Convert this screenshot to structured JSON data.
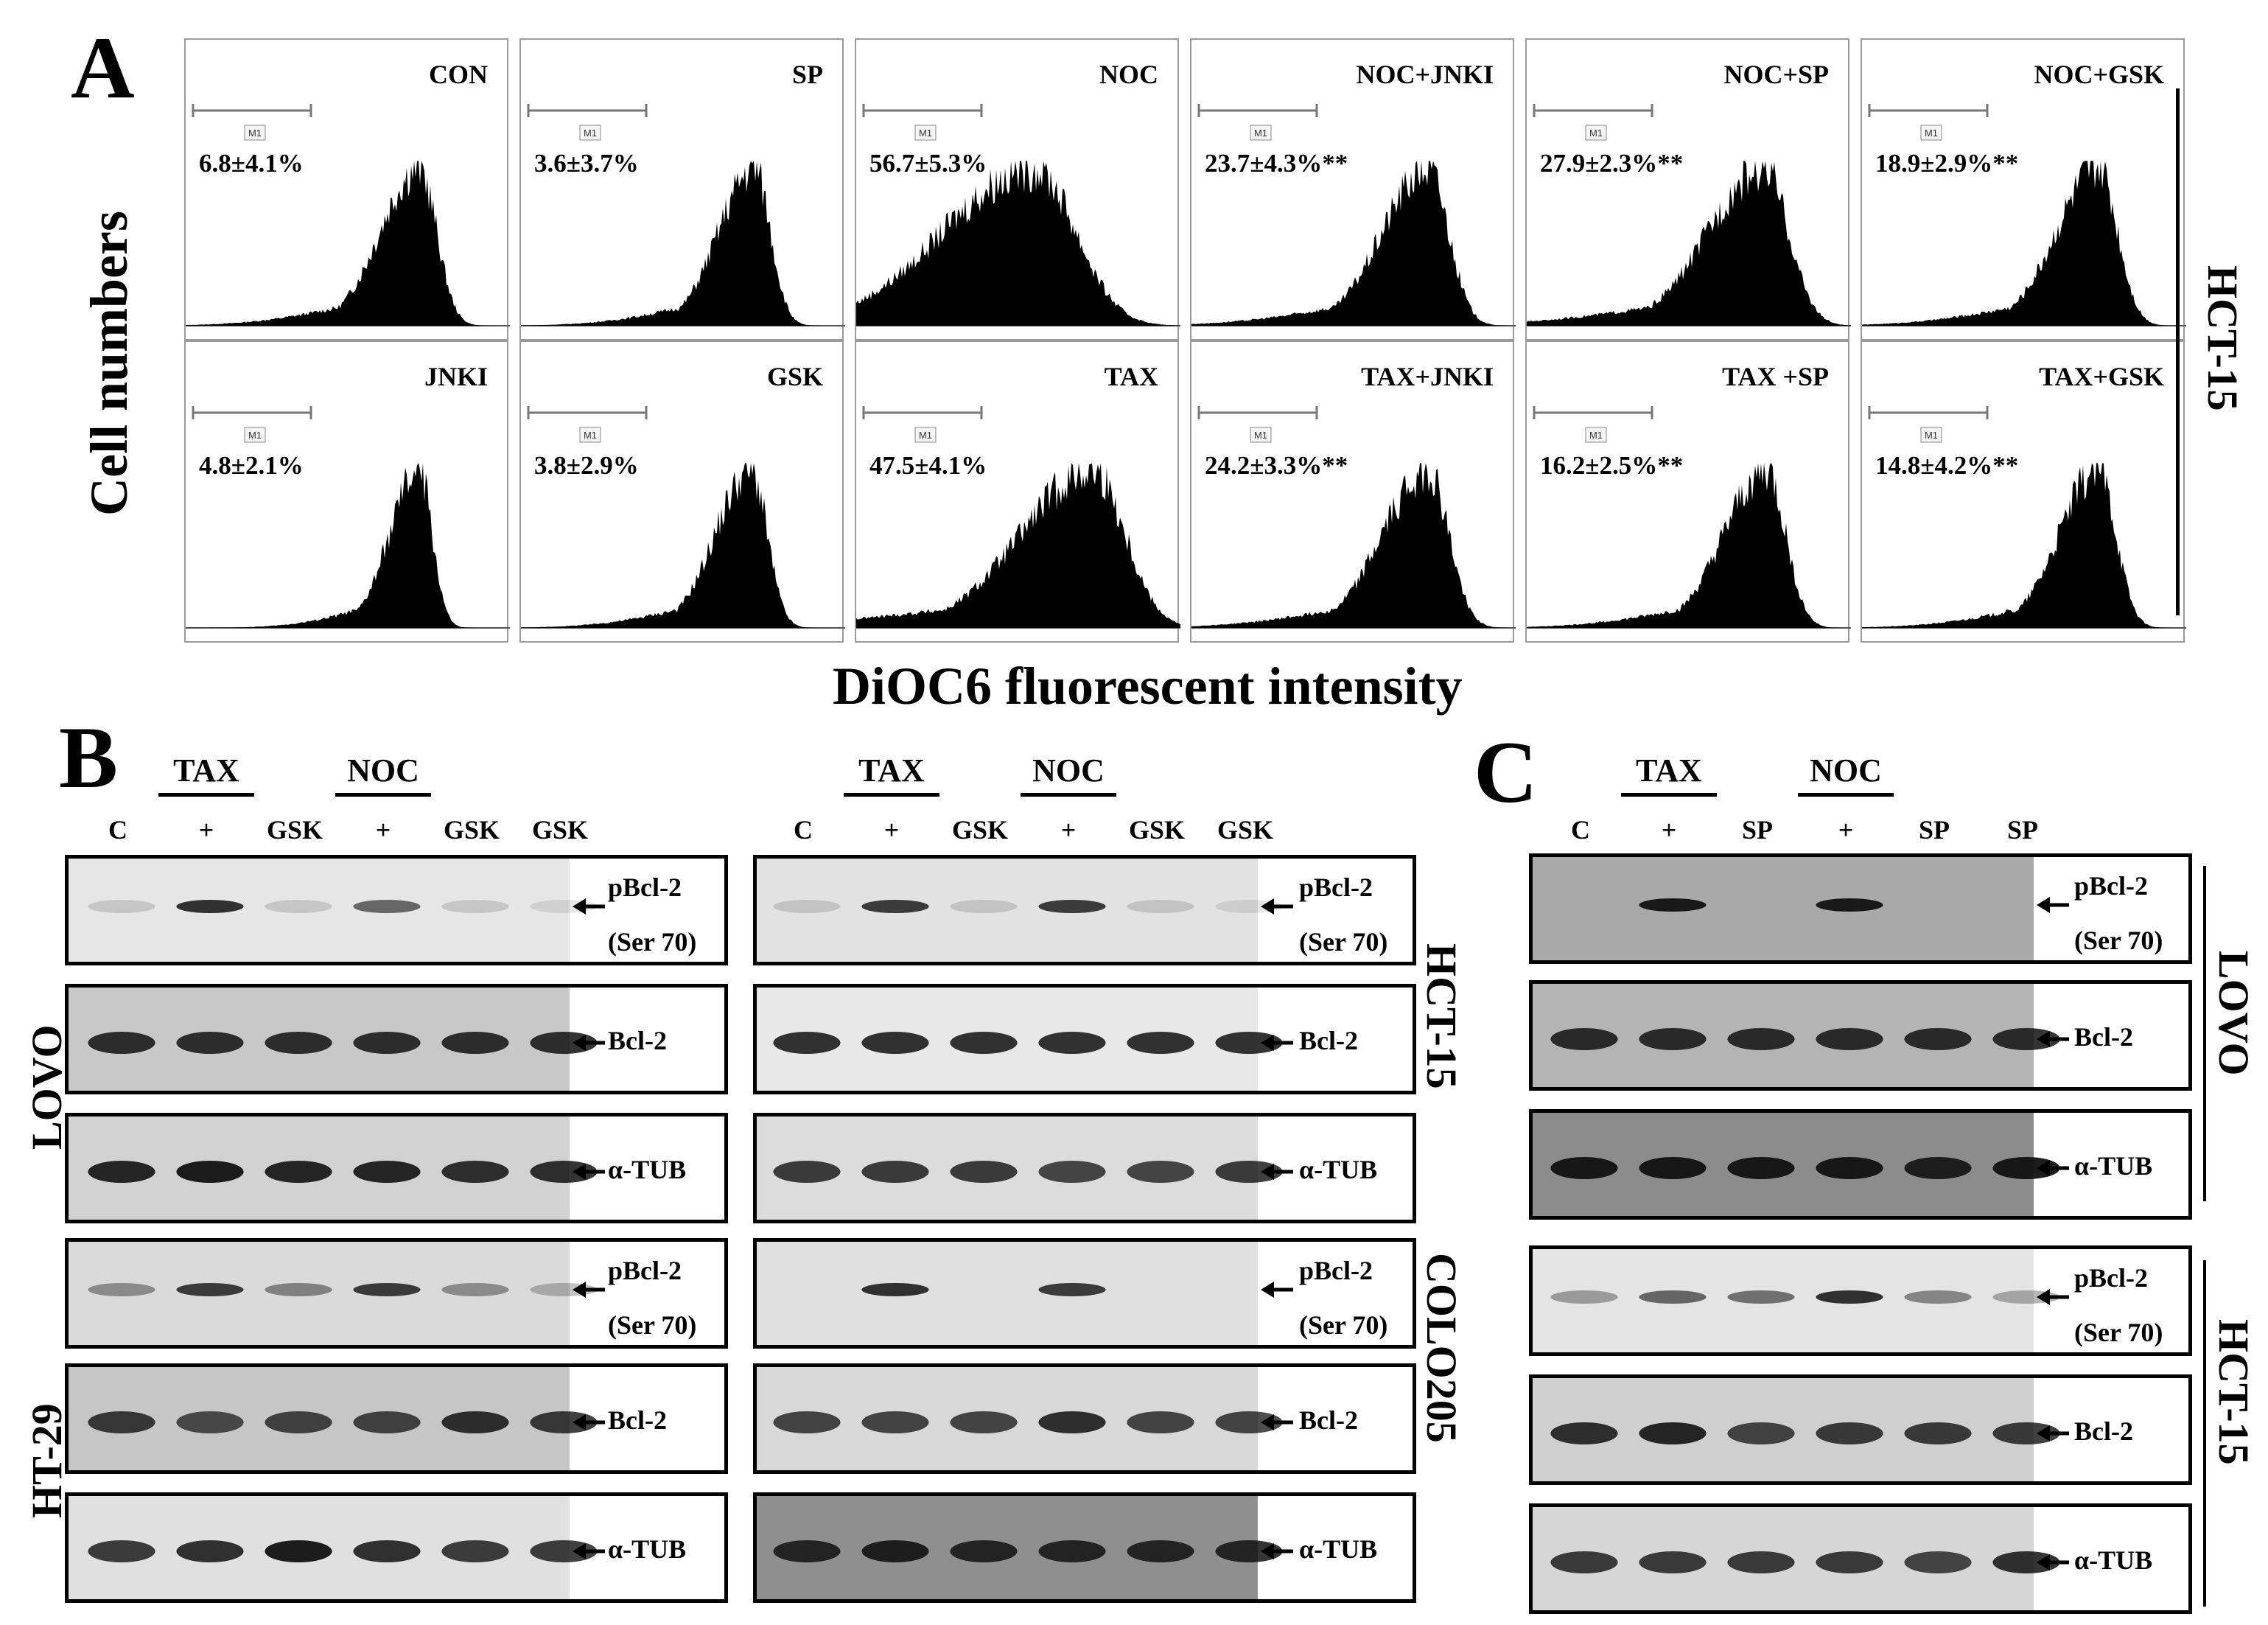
{
  "panel_a": {
    "letter": "A",
    "y_axis_label": "Cell numbers",
    "x_axis_label": "DiOC6 fluorescent intensity",
    "cell_line_label": "HCT-15",
    "gate_label": "M1",
    "histograms": [
      {
        "title": "CON",
        "value": "6.8±4.1%",
        "peak": 0.72,
        "width": 0.12
      },
      {
        "title": "SP",
        "value": "3.6±3.7%",
        "peak": 0.72,
        "width": 0.11
      },
      {
        "title": "NOC",
        "value": "56.7±5.3%",
        "peak": 0.55,
        "width": 0.28
      },
      {
        "title": "NOC+JNKI",
        "value": "23.7±4.3%**",
        "peak": 0.73,
        "width": 0.14
      },
      {
        "title": "NOC+SP",
        "value": "27.9±2.3%**",
        "peak": 0.73,
        "width": 0.17
      },
      {
        "title": "NOC+GSK",
        "value": "18.9±2.9%**",
        "peak": 0.73,
        "width": 0.13
      },
      {
        "title": "JNKI",
        "value": "4.8±2.1%",
        "peak": 0.72,
        "width": 0.09
      },
      {
        "title": "GSK",
        "value": "3.8±2.9%",
        "peak": 0.71,
        "width": 0.11
      },
      {
        "title": "TAX",
        "value": "47.5±4.1%",
        "peak": 0.73,
        "width": 0.22
      },
      {
        "title": "TAX+JNKI",
        "value": "24.2±3.3%**",
        "peak": 0.73,
        "width": 0.14
      },
      {
        "title": "TAX  +SP",
        "value": "16.2±2.5%**",
        "peak": 0.74,
        "width": 0.13
      },
      {
        "title": "TAX+GSK",
        "value": "14.8±4.2%**",
        "peak": 0.73,
        "width": 0.12
      }
    ]
  },
  "panel_b": {
    "letter": "B",
    "groups": [
      {
        "headers": [
          "TAX",
          "NOC"
        ],
        "lanes": [
          "C",
          "+",
          "GSK",
          "+",
          "GSK",
          "GSK"
        ],
        "cell_lines": [
          "LOVO",
          "HT-29"
        ],
        "blots": [
          {
            "label1": "pBcl-2",
            "label2": "(Ser 70)",
            "bands": [
              0.15,
              0.85,
              0.15,
              0.6,
              0.15,
              0.1
            ]
          },
          {
            "label1": "Bcl-2",
            "bands": [
              0.85,
              0.85,
              0.85,
              0.85,
              0.85,
              0.85
            ]
          },
          {
            "label1": "α-TUB",
            "bands": [
              0.9,
              0.95,
              0.9,
              0.9,
              0.85,
              0.85
            ]
          },
          {
            "label1": "pBcl-2",
            "label2": "(Ser 70)",
            "bands": [
              0.4,
              0.8,
              0.45,
              0.8,
              0.4,
              0.25
            ]
          },
          {
            "label1": "Bcl-2",
            "bands": [
              0.8,
              0.7,
              0.75,
              0.75,
              0.85,
              0.8
            ]
          },
          {
            "label1": "α-TUB",
            "bands": [
              0.8,
              0.85,
              0.95,
              0.85,
              0.8,
              0.8
            ]
          }
        ]
      },
      {
        "headers": [
          "TAX",
          "NOC"
        ],
        "lanes": [
          "C",
          "+",
          "GSK",
          "+",
          "GSK",
          "GSK"
        ],
        "cell_lines": [
          "HCT-15",
          "COLO205"
        ],
        "blots": [
          {
            "label1": "pBcl-2",
            "label2": "(Ser 70)",
            "bands": [
              0.15,
              0.8,
              0.15,
              0.8,
              0.15,
              0.1
            ]
          },
          {
            "label1": "Bcl-2",
            "bands": [
              0.85,
              0.85,
              0.85,
              0.85,
              0.85,
              0.85
            ]
          },
          {
            "label1": "α-TUB",
            "bands": [
              0.8,
              0.8,
              0.8,
              0.75,
              0.75,
              0.8
            ]
          },
          {
            "label1": "pBcl-2",
            "label2": "(Ser 70)",
            "bands": [
              0.0,
              0.85,
              0.0,
              0.8,
              0.0,
              0.0
            ]
          },
          {
            "label1": "Bcl-2",
            "bands": [
              0.75,
              0.75,
              0.75,
              0.85,
              0.75,
              0.75
            ]
          },
          {
            "label1": "α-TUB",
            "bands": [
              0.85,
              0.9,
              0.85,
              0.85,
              0.85,
              0.85
            ]
          }
        ]
      }
    ]
  },
  "panel_c": {
    "letter": "C",
    "headers": [
      "TAX",
      "NOC"
    ],
    "lanes": [
      "C",
      "+",
      "SP",
      "+",
      "SP",
      "SP"
    ],
    "cell_lines": [
      "LOVO",
      "HCT-15"
    ],
    "blots": [
      {
        "label1": "pBcl-2",
        "label2": "(Ser 70)",
        "bands": [
          0.0,
          0.95,
          0.0,
          0.95,
          0.0,
          0.0
        ]
      },
      {
        "label1": "Bcl-2",
        "bands": [
          0.85,
          0.85,
          0.85,
          0.85,
          0.85,
          0.85
        ]
      },
      {
        "label1": "α-TUB",
        "bands": [
          0.95,
          0.95,
          0.95,
          0.95,
          0.9,
          0.95
        ]
      },
      {
        "label1": "pBcl-2",
        "label2": "(Ser 70)",
        "bands": [
          0.35,
          0.6,
          0.55,
          0.85,
          0.45,
          0.3
        ]
      },
      {
        "label1": "Bcl-2",
        "bands": [
          0.85,
          0.9,
          0.75,
          0.8,
          0.8,
          0.8
        ]
      },
      {
        "label1": "α-TUB",
        "bands": [
          0.8,
          0.8,
          0.8,
          0.8,
          0.75,
          0.85
        ]
      }
    ]
  }
}
